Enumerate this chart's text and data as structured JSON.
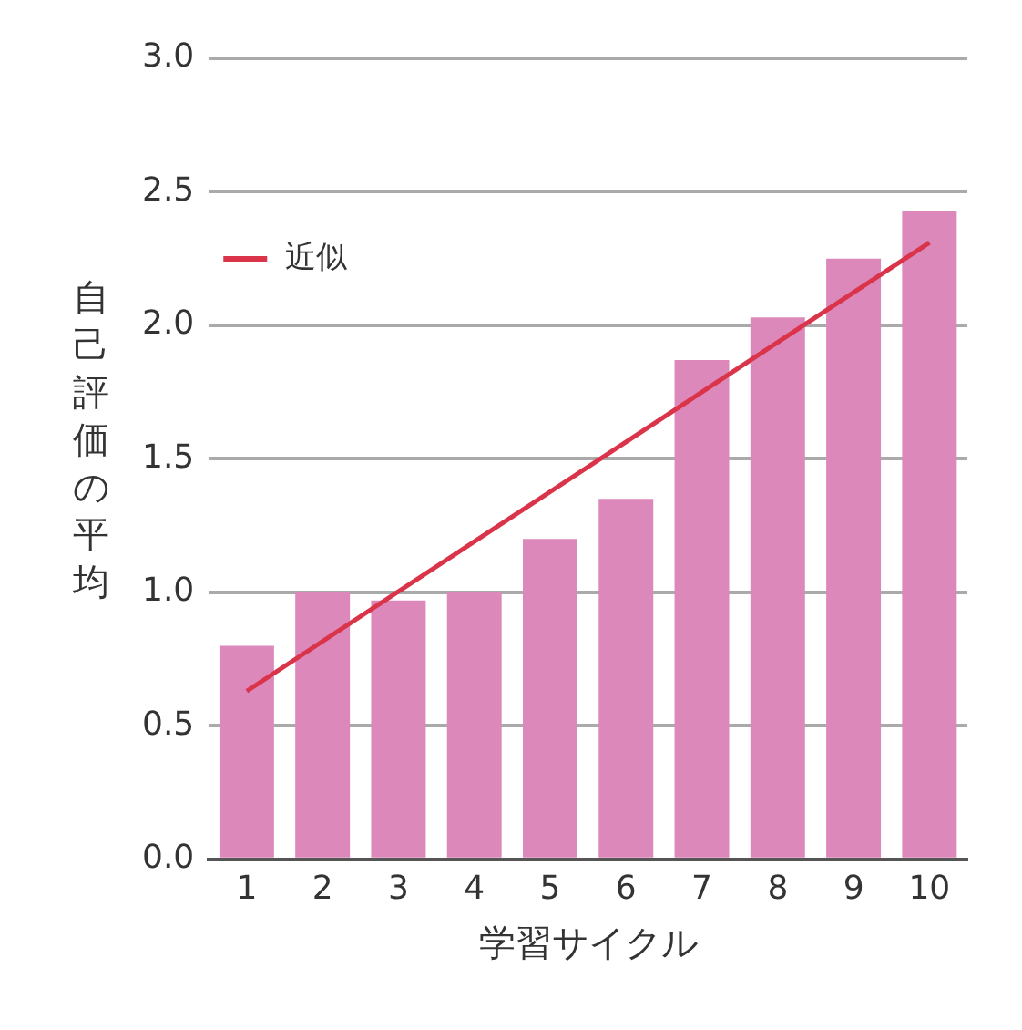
{
  "chart_data": {
    "type": "bar",
    "xlabel": "学習サイクル",
    "ylabel": "自己評価の平均",
    "categories": [
      "1",
      "2",
      "3",
      "4",
      "5",
      "6",
      "7",
      "8",
      "9",
      "10"
    ],
    "series": [
      {
        "color": "#dd88bb",
        "values": [
          0.8,
          1.0,
          0.97,
          1.0,
          1.2,
          1.35,
          1.87,
          2.03,
          2.25,
          2.43
        ]
      },
      {
        "type": "line",
        "name": "近似",
        "color": "#d9344a",
        "x": [
          "1",
          "10"
        ],
        "values": [
          0.63,
          2.31
        ]
      }
    ],
    "ylim": [
      0,
      3
    ],
    "yticks": [
      {
        "value": 0,
        "label": "0.0"
      },
      {
        "value": 0.5,
        "label": "0.5"
      },
      {
        "value": 1,
        "label": "1.0"
      },
      {
        "value": 1.5,
        "label": "1.5"
      },
      {
        "value": 2,
        "label": "2.0"
      },
      {
        "value": 2.5,
        "label": "2.5"
      },
      {
        "value": 3,
        "label": "3.0"
      }
    ],
    "grid": "y",
    "legend": "top left",
    "marker": "none"
  }
}
